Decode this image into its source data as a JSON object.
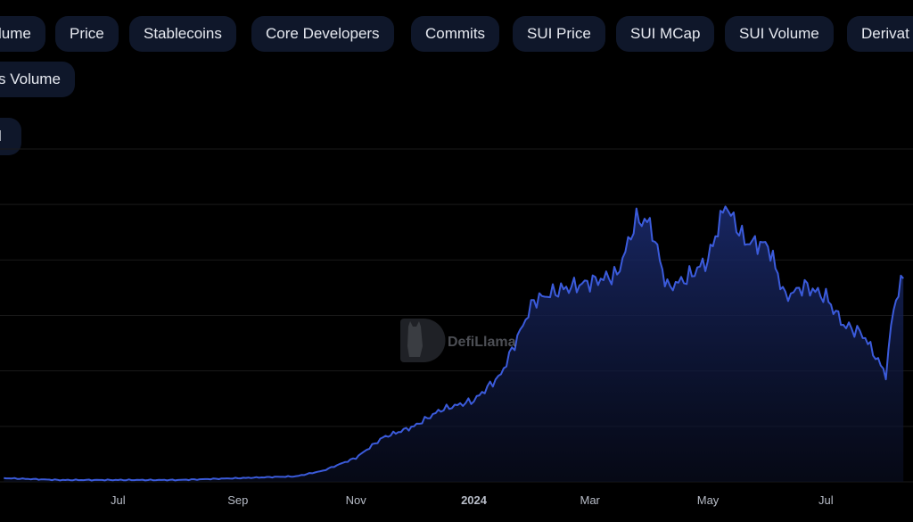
{
  "metric_pills": [
    "lume",
    "Price",
    "Stablecoins",
    "Core Developers",
    "Commits",
    "SUI Price",
    "SUI MCap",
    "SUI Volume",
    "Derivat"
  ],
  "row2_pill": "s Volume",
  "row3_pill": "l",
  "watermark": {
    "text": "DefiLlama"
  },
  "colors": {
    "line": "#3b5bdb",
    "fill_top": "#1a2a6c",
    "grid": "#1a1a1a"
  },
  "chart_data": {
    "type": "area",
    "title": "",
    "xlabel": "",
    "ylabel": "",
    "x_ticks": [
      "Jul",
      "Sep",
      "Nov",
      "2024",
      "Mar",
      "May",
      "Jul"
    ],
    "x": [
      "2023-05-03",
      "2023-06-01",
      "2023-07-01",
      "2023-08-01",
      "2023-09-01",
      "2023-10-01",
      "2023-10-15",
      "2023-11-01",
      "2023-11-15",
      "2023-12-01",
      "2023-12-15",
      "2024-01-01",
      "2024-01-15",
      "2024-02-01",
      "2024-02-15",
      "2024-03-01",
      "2024-03-15",
      "2024-03-25",
      "2024-04-01",
      "2024-04-10",
      "2024-04-20",
      "2024-05-01",
      "2024-05-10",
      "2024-05-20",
      "2024-06-01",
      "2024-06-10",
      "2024-06-20",
      "2024-07-01",
      "2024-07-10",
      "2024-07-20",
      "2024-08-01",
      "2024-08-05",
      "2024-08-10"
    ],
    "values": [
      2,
      1,
      1,
      1,
      2,
      3,
      6,
      13,
      24,
      30,
      39,
      44,
      58,
      98,
      104,
      108,
      112,
      142,
      140,
      105,
      110,
      120,
      150,
      130,
      128,
      100,
      106,
      100,
      85,
      80,
      58,
      95,
      110
    ],
    "ylim": [
      0,
      180
    ],
    "y_grid_lines": 6,
    "grid": true,
    "legend": "none"
  }
}
